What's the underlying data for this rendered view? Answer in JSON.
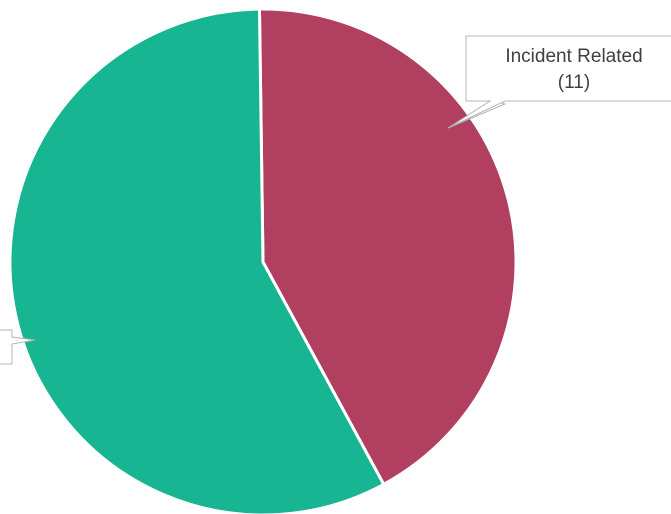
{
  "chart_data": {
    "type": "pie",
    "slices": [
      {
        "label": "Incident Related",
        "count_label": "(11)",
        "value": 11,
        "color": "#b03f60"
      },
      {
        "label": "",
        "count_label": "",
        "value": 15,
        "color": "#17b591"
      }
    ],
    "title": "",
    "legend": "none"
  }
}
